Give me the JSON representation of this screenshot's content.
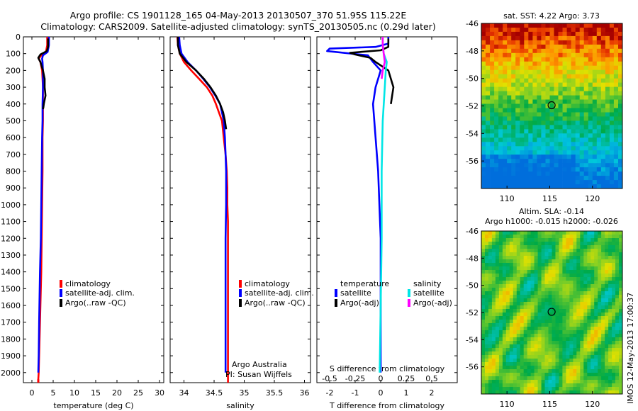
{
  "header": {
    "title1": "Argo profile: CS 1901128_165 04-May-2013 20130507_370 51.95S 115.22E",
    "title2": "Climatology: CARS2009. Satellite-adjusted climatology: synTS_20130505.nc (0.29d later)"
  },
  "depth_ticks": [
    "0",
    "100",
    "200",
    "300",
    "400",
    "500",
    "600",
    "700",
    "800",
    "900",
    "1000",
    "1100",
    "1200",
    "1300",
    "1400",
    "1500",
    "1600",
    "1700",
    "1800",
    "1900",
    "2000"
  ],
  "legend": {
    "climatology": "climatology",
    "satellite_clim": "satellite-adj. clim.",
    "argo_raw": "Argo(..raw -QC)",
    "temperature": "temperature",
    "salinity": "salinity",
    "satellite": "satellite",
    "argo_adj": "Argo(-adj)"
  },
  "credits": {
    "line1": "Argo Australia",
    "line2": "PI: Susan Wijffels"
  },
  "maps": {
    "sst_title": "sat. SST: 4.22 Argo: 3.73",
    "sla_title1": "Altim. SLA: -0.14",
    "sla_title2": "Argo h1000: -0.015 h2000: -0.026",
    "stamp": "IMOS 12-May-2013 17:00:37"
  },
  "colors": {
    "climatology": "#ff0000",
    "satellite": "#0000ff",
    "argo": "#000000",
    "sal_satellite": "#00e6e6",
    "sal_argo": "#ff00ff"
  },
  "chart_data": [
    {
      "type": "line",
      "xlabel": "temperature (deg C)",
      "xticks": [
        "0",
        "5",
        "10",
        "15",
        "20",
        "25",
        "30"
      ],
      "xlim": [
        -2,
        31
      ],
      "ylim": [
        0,
        2060
      ],
      "y_reversed": true,
      "series": [
        {
          "name": "climatology",
          "color": "#ff0000",
          "x": [
            3.6,
            3.6,
            3.3,
            2.2,
            1.6,
            2.0,
            2.4,
            2.6,
            2.6,
            2.6,
            2.5,
            2.5,
            2.4,
            2.3,
            2.2,
            2.0,
            1.8,
            1.6,
            1.5,
            1.5
          ],
          "y": [
            0,
            50,
            90,
            110,
            130,
            150,
            200,
            300,
            400,
            500,
            600,
            800,
            1000,
            1200,
            1400,
            1600,
            1800,
            2000,
            2040,
            2060
          ]
        },
        {
          "name": "satellite-adj. clim.",
          "color": "#0000ff",
          "x": [
            4.0,
            4.0,
            3.7,
            2.6,
            2.4,
            2.5,
            2.6,
            2.6,
            2.5,
            2.5,
            2.4,
            2.3,
            2.2,
            2.1,
            1.9,
            1.7,
            1.6,
            1.5
          ],
          "y": [
            0,
            50,
            90,
            110,
            130,
            150,
            200,
            300,
            400,
            500,
            600,
            800,
            1000,
            1200,
            1400,
            1700,
            1900,
            2000
          ]
        },
        {
          "name": "Argo(..raw -QC)",
          "color": "#000000",
          "x": [
            3.8,
            3.8,
            3.5,
            2.0,
            1.5,
            2.0,
            2.6,
            3.0,
            3.0,
            3.2,
            2.8,
            2.7,
            2.6
          ],
          "y": [
            10,
            60,
            85,
            105,
            125,
            150,
            200,
            250,
            300,
            350,
            400,
            420,
            430
          ]
        }
      ]
    },
    {
      "type": "line",
      "xlabel": "salinity",
      "xticks": [
        "34",
        "34.5",
        "35",
        "35.5",
        "36"
      ],
      "xlim": [
        33.77,
        36.1
      ],
      "ylim": [
        0,
        2060
      ],
      "y_reversed": true,
      "series": [
        {
          "name": "climatology",
          "color": "#ff0000",
          "x": [
            33.89,
            33.9,
            33.93,
            34.0,
            34.12,
            34.25,
            34.38,
            34.47,
            34.53,
            34.58,
            34.63,
            34.66,
            34.69,
            34.71,
            34.72,
            34.72,
            34.73,
            34.73,
            34.73,
            34.73,
            34.73
          ],
          "y": [
            0,
            50,
            100,
            150,
            200,
            250,
            300,
            350,
            400,
            450,
            500,
            600,
            700,
            800,
            900,
            1000,
            1100,
            1200,
            1500,
            1800,
            2060
          ]
        },
        {
          "name": "satellite-adj. clim.",
          "color": "#0000ff",
          "x": [
            33.92,
            33.93,
            33.96,
            34.06,
            34.2,
            34.32,
            34.43,
            34.52,
            34.6,
            34.63,
            34.66,
            34.68,
            34.69,
            34.7,
            34.7,
            34.7,
            34.69,
            34.69,
            34.69
          ],
          "y": [
            0,
            50,
            100,
            150,
            200,
            250,
            300,
            350,
            400,
            450,
            500,
            600,
            700,
            800,
            900,
            1000,
            1200,
            1500,
            2000
          ]
        },
        {
          "name": "Argo(..raw -QC)",
          "color": "#000000",
          "x": [
            33.9,
            33.9,
            33.93,
            34.04,
            34.2,
            34.33,
            34.44,
            34.53,
            34.6,
            34.65,
            34.68,
            34.7
          ],
          "y": [
            0,
            50,
            100,
            150,
            200,
            250,
            300,
            350,
            400,
            450,
            500,
            550
          ]
        }
      ]
    },
    {
      "type": "line",
      "xlabel": "T difference from climatology",
      "x2label": "S difference from climatology",
      "xticks": [
        "-2",
        "-1",
        "0",
        "1",
        "2"
      ],
      "x2ticks": [
        "-0.5",
        "-0.25",
        "0",
        "0.25",
        "0.5"
      ],
      "xlim": [
        -2.5,
        3.0
      ],
      "x2lim": [
        -0.625,
        0.75
      ],
      "ylim": [
        0,
        2060
      ],
      "y_reversed": true,
      "series": [
        {
          "name": "satellite",
          "group": "temperature",
          "color": "#0000ff",
          "x": [
            0.3,
            0.3,
            -0.2,
            -2.0,
            -2.1,
            -0.5,
            -0.3,
            0.0,
            -0.2,
            -0.3,
            -0.2,
            -0.1,
            -0.05,
            0.0,
            0.0,
            0.0,
            0.0
          ],
          "y": [
            0,
            40,
            60,
            70,
            85,
            110,
            150,
            200,
            300,
            400,
            600,
            800,
            1000,
            1200,
            1500,
            1800,
            2000
          ]
        },
        {
          "name": "Argo(-adj)",
          "group": "temperature",
          "color": "#000000",
          "x": [
            0.3,
            0.3,
            0.0,
            -1.2,
            -1.0,
            -0.4,
            -0.2,
            0.3,
            0.4,
            0.5,
            0.4
          ],
          "y": [
            10,
            60,
            80,
            95,
            105,
            125,
            150,
            200,
            250,
            300,
            400
          ]
        },
        {
          "name": "satellite",
          "group": "salinity",
          "color": "#00e6e6",
          "x": [
            0.02,
            0.02,
            0.03,
            0.06,
            0.05,
            0.04,
            0.02,
            0.01,
            0.01,
            0.0,
            -0.01
          ],
          "y": [
            0,
            50,
            100,
            150,
            200,
            300,
            500,
            800,
            1200,
            1600,
            2000
          ]
        },
        {
          "name": "Argo(-adj)",
          "group": "salinity",
          "color": "#ff00ff",
          "x": [
            0.02,
            0.02,
            0.03,
            0.04,
            0.02,
            0.01
          ],
          "y": [
            0,
            50,
            100,
            150,
            200,
            250
          ]
        }
      ]
    },
    {
      "type": "heatmap",
      "title": "sat. SST: 4.22 Argo: 3.73",
      "xticks": [
        "110",
        "115",
        "120"
      ],
      "yticks": [
        "-46",
        "-48",
        "-50",
        "-52",
        "-54",
        "-56"
      ],
      "xlim": [
        107,
        123.5
      ],
      "ylim": [
        -46,
        -58
      ],
      "marker": {
        "lon": 115.22,
        "lat": -51.95
      }
    },
    {
      "type": "heatmap",
      "xticks": [
        "110",
        "115",
        "120"
      ],
      "yticks": [
        "-46",
        "-48",
        "-50",
        "-52",
        "-54",
        "-56"
      ],
      "xlim": [
        107,
        123.5
      ],
      "ylim": [
        -46,
        -58
      ],
      "marker": {
        "lon": 115.22,
        "lat": -51.95
      }
    }
  ]
}
